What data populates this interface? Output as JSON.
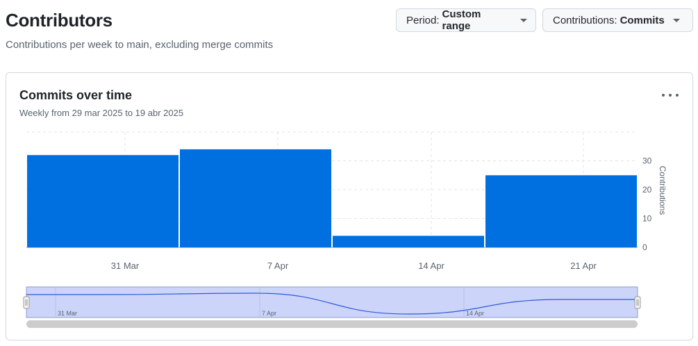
{
  "header": {
    "title": "Contributors",
    "subtitle": "Contributions per week to main, excluding merge commits"
  },
  "filters": {
    "period_label": "Period:",
    "period_value": "Custom range",
    "contrib_label": "Contributions:",
    "contrib_value": "Commits"
  },
  "card": {
    "title": "Commits over time",
    "subtitle": "Weekly from 29 mar 2025 to 19 abr 2025",
    "menu_icon": "kebab-horizontal-icon"
  },
  "chart_data": {
    "type": "bar",
    "title": "Commits over time",
    "ylabel": "Contributions",
    "ylim": [
      0,
      40
    ],
    "yticks": [
      0,
      10,
      20,
      30
    ],
    "x_tick_labels": [
      "31 Mar",
      "7 Apr",
      "14 Apr",
      "21 Apr"
    ],
    "values": [
      32,
      34,
      4,
      25
    ],
    "bar_color": "#0070e0",
    "grid": true,
    "navigator": {
      "tick_labels": [
        "31 Mar",
        "7 Apr",
        "14 Apr"
      ],
      "fill_color": "#cdd4fa",
      "line_color": "#2a5bd7",
      "scrollbar_color": "#cccccc"
    }
  }
}
